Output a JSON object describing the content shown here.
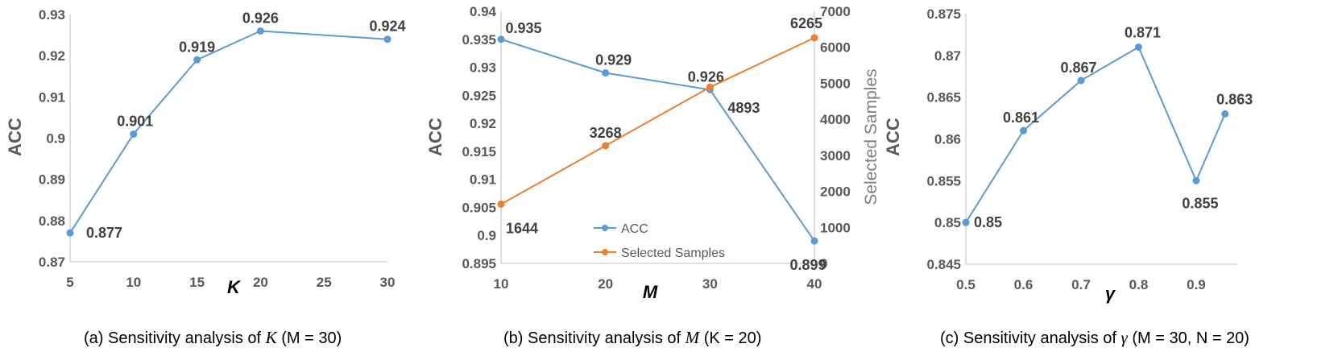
{
  "chart_data": [
    {
      "type": "line",
      "ylabel": "ACC",
      "xlabel": "K",
      "x": [
        5,
        10,
        15,
        20,
        30
      ],
      "xticks": [
        5,
        10,
        15,
        20,
        25,
        30
      ],
      "xlim": [
        5,
        30
      ],
      "ylim": [
        0.87,
        0.93
      ],
      "yticks": [
        0.87,
        0.88,
        0.89,
        0.9,
        0.91,
        0.92,
        0.93
      ],
      "series": [
        {
          "values": [
            0.877,
            0.901,
            0.919,
            0.926,
            0.924
          ],
          "labels": [
            "0.877",
            "0.901",
            "0.919",
            "0.926",
            "0.924"
          ],
          "color": "#5B9BD5"
        }
      ],
      "caption": {
        "prefix": "(a) Sensitivity analysis of ",
        "var": "K",
        "suffix": " (M = 30)"
      }
    },
    {
      "type": "line",
      "ylabel": "ACC",
      "y2label": "Selected Samples",
      "xlabel": "M",
      "x": [
        10,
        20,
        30,
        40
      ],
      "xticks": [
        10,
        20,
        30,
        40
      ],
      "xlim": [
        10,
        40
      ],
      "ylim": [
        0.895,
        0.94
      ],
      "yticks": [
        0.895,
        0.9,
        0.905,
        0.91,
        0.915,
        0.92,
        0.925,
        0.93,
        0.935,
        0.94
      ],
      "y2lim": [
        0,
        7000
      ],
      "y2ticks": [
        0,
        1000,
        2000,
        3000,
        4000,
        5000,
        6000,
        7000
      ],
      "legend_position": "bottom-center",
      "series": [
        {
          "name": "ACC",
          "axis": "left",
          "values": [
            0.935,
            0.929,
            0.926,
            0.899
          ],
          "labels": [
            "0.935",
            "0.929",
            "0.926",
            "0.899"
          ],
          "color": "#5B9BD5"
        },
        {
          "name": "Selected Samples",
          "axis": "right",
          "values": [
            1644,
            3268,
            4893,
            6265
          ],
          "labels": [
            "1644",
            "3268",
            "4893",
            "6265"
          ],
          "color": "#ED7D31"
        }
      ],
      "caption": {
        "prefix": "(b) Sensitivity analysis of ",
        "var": "M",
        "suffix": " (K = 20)"
      }
    },
    {
      "type": "line",
      "ylabel": "ACC",
      "xlabel": "γ",
      "x": [
        0.5,
        0.6,
        0.7,
        0.8,
        0.9,
        0.95
      ],
      "xticks": [
        0.5,
        0.6,
        0.7,
        0.8,
        0.9
      ],
      "xlim": [
        0.5,
        0.97
      ],
      "ylim": [
        0.845,
        0.875
      ],
      "yticks": [
        0.845,
        0.85,
        0.855,
        0.86,
        0.865,
        0.87,
        0.875
      ],
      "series": [
        {
          "values": [
            0.85,
            0.861,
            0.867,
            0.871,
            0.855,
            0.863
          ],
          "labels": [
            "0.85",
            "0.861",
            "0.867",
            "0.871",
            "0.855",
            "0.863"
          ],
          "color": "#5B9BD5"
        }
      ],
      "caption": {
        "prefix": "(c) Sensitivity analysis of ",
        "var": "γ",
        "suffix": " (M = 30, N = 20)"
      }
    }
  ]
}
